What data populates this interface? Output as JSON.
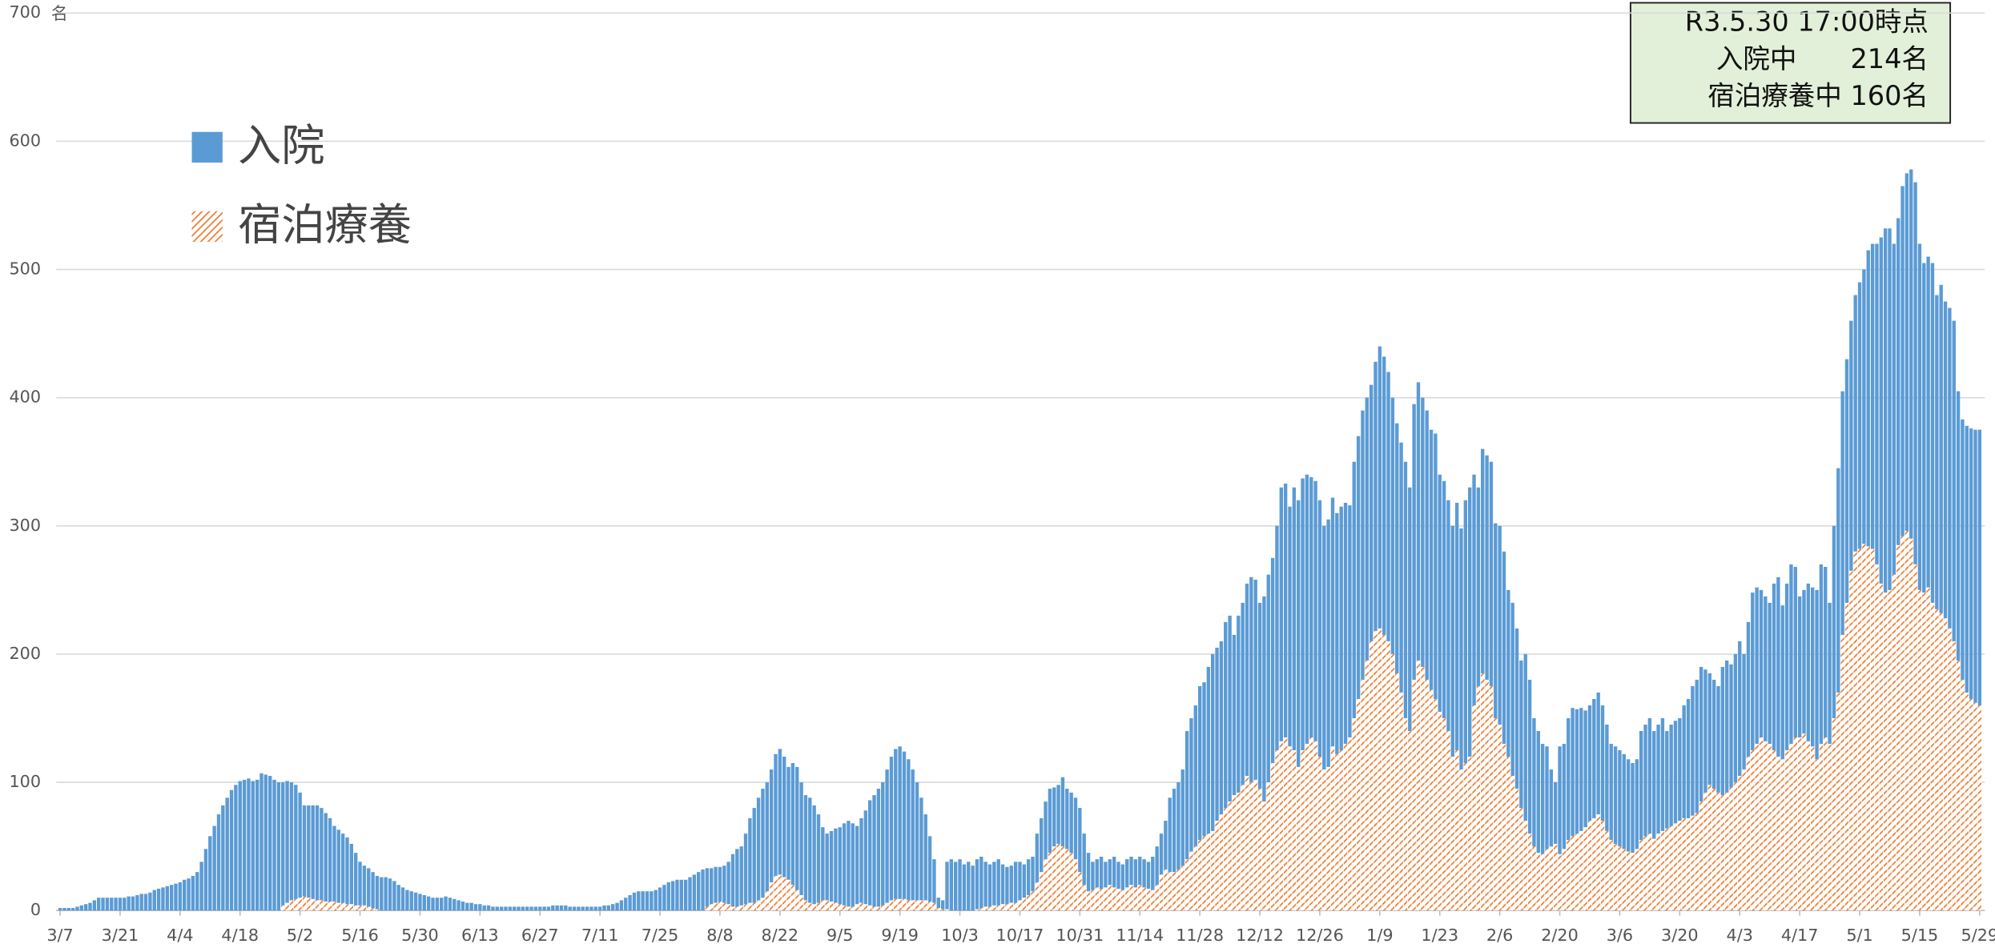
{
  "chart_data": {
    "type": "stacked_bar",
    "y_label": "名",
    "annotation": [
      "R3.5.30 17:00時点",
      "入院中　　214名",
      "宿泊療養中 160名"
    ],
    "ylim": [
      0,
      700
    ],
    "yticks": [
      0,
      100,
      200,
      300,
      400,
      500,
      600,
      700
    ],
    "grid": true,
    "legend": "upper left",
    "categories": [
      "3/7",
      null,
      null,
      null,
      null,
      null,
      null,
      null,
      null,
      null,
      null,
      null,
      null,
      null,
      "3/21",
      null,
      null,
      null,
      null,
      null,
      null,
      null,
      null,
      null,
      null,
      null,
      null,
      null,
      "4/4",
      null,
      null,
      null,
      null,
      null,
      null,
      null,
      null,
      null,
      null,
      null,
      null,
      null,
      "4/18",
      null,
      null,
      null,
      null,
      null,
      null,
      null,
      null,
      null,
      null,
      null,
      null,
      null,
      "5/2",
      null,
      null,
      null,
      null,
      null,
      null,
      null,
      null,
      null,
      null,
      null,
      null,
      null,
      "5/16",
      null,
      null,
      null,
      null,
      null,
      null,
      null,
      null,
      null,
      null,
      null,
      null,
      null,
      "5/30",
      null,
      null,
      null,
      null,
      null,
      null,
      null,
      null,
      null,
      null,
      null,
      null,
      null,
      "6/13",
      null,
      null,
      null,
      null,
      null,
      null,
      null,
      null,
      null,
      null,
      null,
      null,
      null,
      "6/27",
      null,
      null,
      null,
      null,
      null,
      null,
      null,
      null,
      null,
      null,
      null,
      null,
      null,
      "7/11",
      null,
      null,
      null,
      null,
      null,
      null,
      null,
      null,
      null,
      null,
      null,
      null,
      null,
      "7/25",
      null,
      null,
      null,
      null,
      null,
      null,
      null,
      null,
      null,
      null,
      null,
      null,
      null,
      "8/8",
      null,
      null,
      null,
      null,
      null,
      null,
      null,
      null,
      null,
      null,
      null,
      null,
      null,
      "8/22",
      null,
      null,
      null,
      null,
      null,
      null,
      null,
      null,
      null,
      null,
      null,
      null,
      null,
      "9/5",
      null,
      null,
      null,
      null,
      null,
      null,
      null,
      null,
      null,
      null,
      null,
      null,
      null,
      "9/19",
      null,
      null,
      null,
      null,
      null,
      null,
      null,
      null,
      null,
      null,
      null,
      null,
      null,
      "10/3",
      null,
      null,
      null,
      null,
      null,
      null,
      null,
      null,
      null,
      null,
      null,
      null,
      null,
      "10/17",
      null,
      null,
      null,
      null,
      null,
      null,
      null,
      null,
      null,
      null,
      null,
      null,
      null,
      "10/31",
      null,
      null,
      null,
      null,
      null,
      null,
      null,
      null,
      null,
      null,
      null,
      null,
      null,
      "11/14",
      null,
      null,
      null,
      null,
      null,
      null,
      null,
      null,
      null,
      null,
      null,
      null,
      null,
      "11/28",
      null,
      null,
      null,
      null,
      null,
      null,
      null,
      null,
      null,
      null,
      null,
      null,
      null,
      "12/12",
      null,
      null,
      null,
      null,
      null,
      null,
      null,
      null,
      null,
      null,
      null,
      null,
      null,
      "12/26",
      null,
      null,
      null,
      null,
      null,
      null,
      null,
      null,
      null,
      null,
      null,
      null,
      null,
      "1/9",
      null,
      null,
      null,
      null,
      null,
      null,
      null,
      null,
      null,
      null,
      null,
      null,
      null,
      "1/23",
      null,
      null,
      null,
      null,
      null,
      null,
      null,
      null,
      null,
      null,
      null,
      null,
      null,
      "2/6",
      null,
      null,
      null,
      null,
      null,
      null,
      null,
      null,
      null,
      null,
      null,
      null,
      null,
      "2/20",
      null,
      null,
      null,
      null,
      null,
      null,
      null,
      null,
      null,
      null,
      null,
      null,
      null,
      "3/6",
      null,
      null,
      null,
      null,
      null,
      null,
      null,
      null,
      null,
      null,
      null,
      null,
      null,
      "3/20",
      null,
      null,
      null,
      null,
      null,
      null,
      null,
      null,
      null,
      null,
      null,
      null,
      null,
      "4/3",
      null,
      null,
      null,
      null,
      null,
      null,
      null,
      null,
      null,
      null,
      null,
      null,
      null,
      "4/17",
      null,
      null,
      null,
      null,
      null,
      null,
      null,
      null,
      null,
      null,
      null,
      null,
      null,
      "5/1",
      null,
      null,
      null,
      null,
      null,
      null,
      null,
      null,
      null,
      null,
      null,
      null,
      null,
      "5/15",
      null,
      null,
      null,
      null,
      null,
      null,
      null,
      null,
      null,
      null,
      null,
      null,
      null,
      "5/29"
    ],
    "series": [
      {
        "name": "入院",
        "color": "#5b9bd5",
        "values": [
          2,
          2,
          2,
          2,
          3,
          4,
          5,
          6,
          8,
          10,
          10,
          10,
          10,
          10,
          10,
          10,
          11,
          11,
          12,
          13,
          13,
          14,
          16,
          17,
          18,
          19,
          20,
          21,
          22,
          24,
          25,
          27,
          30,
          38,
          48,
          58,
          66,
          75,
          82,
          88,
          94,
          98,
          101,
          102,
          103,
          101,
          102,
          107,
          106,
          105,
          102,
          100,
          96,
          95,
          92,
          89,
          82,
          71,
          72,
          73,
          74,
          72,
          69,
          65,
          59,
          57,
          54,
          52,
          47,
          41,
          34,
          31,
          30,
          28,
          26,
          26,
          26,
          25,
          23,
          20,
          18,
          16,
          15,
          14,
          13,
          12,
          11,
          10,
          10,
          10,
          11,
          10,
          9,
          8,
          7,
          6,
          6,
          5,
          5,
          4,
          4,
          3,
          3,
          3,
          3,
          3,
          3,
          3,
          3,
          3,
          3,
          3,
          3,
          3,
          3,
          4,
          4,
          4,
          4,
          3,
          3,
          3,
          3,
          3,
          3,
          3,
          3,
          4,
          4,
          5,
          6,
          8,
          10,
          12,
          14,
          15,
          15,
          15,
          15,
          16,
          18,
          20,
          22,
          23,
          24,
          24,
          24,
          26,
          28,
          30,
          32,
          30,
          28,
          28,
          27,
          29,
          33,
          41,
          45,
          46,
          55,
          66,
          74,
          80,
          85,
          85,
          88,
          95,
          98,
          94,
          88,
          95,
          96,
          88,
          82,
          82,
          77,
          69,
          57,
          52,
          55,
          58,
          60,
          64,
          67,
          65,
          61,
          66,
          73,
          82,
          87,
          92,
          96,
          104,
          112,
          117,
          119,
          115,
          110,
          102,
          92,
          80,
          67,
          51,
          34,
          8,
          7,
          37,
          40,
          38,
          40,
          36,
          38,
          35,
          39,
          40,
          35,
          33,
          34,
          36,
          31,
          29,
          29,
          32,
          30,
          26,
          28,
          27,
          38,
          42,
          45,
          50,
          46,
          46,
          54,
          47,
          47,
          48,
          50,
          40,
          30,
          22,
          22,
          25,
          20,
          20,
          24,
          21,
          20,
          22,
          22,
          22,
          22,
          22,
          21,
          26,
          30,
          32,
          38,
          58,
          65,
          68,
          75,
          100,
          104,
          110,
          120,
          120,
          130,
          138,
          135,
          135,
          145,
          145,
          125,
          138,
          142,
          150,
          160,
          156,
          145,
          160,
          162,
          160,
          175,
          198,
          198,
          187,
          205,
          208,
          212,
          210,
          203,
          203,
          200,
          190,
          193,
          194,
          188,
          190,
          188,
          181,
          200,
          205,
          210,
          205,
          200,
          210,
          220,
          217,
          210,
          200,
          195,
          195,
          200,
          190,
          215,
          217,
          210,
          210,
          203,
          207,
          185,
          185,
          180,
          180,
          193,
          188,
          205,
          210,
          180,
          155,
          175,
          175,
          175,
          152,
          155,
          150,
          130,
          135,
          125,
          115,
          130,
          120,
          100,
          95,
          86,
          80,
          60,
          48,
          84,
          82,
          95,
          100,
          97,
          96,
          91,
          90,
          93,
          95,
          90,
          83,
          75,
          76,
          75,
          74,
          72,
          70,
          70,
          85,
          87,
          90,
          84,
          85,
          88,
          76,
          79,
          80,
          80,
          88,
          93,
          101,
          104,
          105,
          96,
          87,
          85,
          83,
          100,
          103,
          96,
          100,
          105,
          90,
          105,
          123,
          122,
          115,
          113,
          110,
          130,
          140,
          120,
          130,
          140,
          133,
          110,
          112,
          123,
          124,
          132,
          140,
          133,
          110,
          150,
          175,
          190,
          190,
          195,
          200,
          208,
          214,
          231,
          238,
          250,
          270,
          284,
          282,
          258,
          255,
          273,
          279,
          288,
          298,
          270,
          257,
          258,
          265,
          245,
          256,
          247,
          250,
          250,
          210,
          203,
          208,
          211,
          213,
          215
        ]
      },
      {
        "name": "宿泊療養",
        "color": "#ed7d31",
        "pattern": "hatch",
        "values": [
          0,
          0,
          0,
          0,
          0,
          0,
          0,
          0,
          0,
          0,
          0,
          0,
          0,
          0,
          0,
          0,
          0,
          0,
          0,
          0,
          0,
          0,
          0,
          0,
          0,
          0,
          0,
          0,
          0,
          0,
          0,
          0,
          0,
          0,
          0,
          0,
          0,
          0,
          0,
          0,
          0,
          0,
          0,
          0,
          0,
          0,
          0,
          0,
          0,
          0,
          0,
          0,
          4,
          6,
          8,
          9,
          10,
          11,
          10,
          9,
          8,
          8,
          7,
          7,
          7,
          6,
          6,
          5,
          5,
          4,
          4,
          4,
          3,
          2,
          1,
          0,
          0,
          0,
          0,
          0,
          0,
          0,
          0,
          0,
          0,
          0,
          0,
          0,
          0,
          0,
          0,
          0,
          0,
          0,
          0,
          0,
          0,
          0,
          0,
          0,
          0,
          0,
          0,
          0,
          0,
          0,
          0,
          0,
          0,
          0,
          0,
          0,
          0,
          0,
          0,
          0,
          0,
          0,
          0,
          0,
          0,
          0,
          0,
          0,
          0,
          0,
          0,
          0,
          0,
          0,
          0,
          0,
          0,
          0,
          0,
          0,
          0,
          0,
          0,
          0,
          0,
          0,
          0,
          0,
          0,
          0,
          0,
          0,
          0,
          0,
          0,
          3,
          5,
          6,
          7,
          6,
          5,
          3,
          3,
          4,
          5,
          6,
          6,
          8,
          10,
          15,
          22,
          27,
          28,
          26,
          24,
          20,
          16,
          12,
          8,
          6,
          5,
          6,
          8,
          8,
          7,
          6,
          5,
          4,
          3,
          3,
          5,
          6,
          5,
          4,
          3,
          3,
          4,
          6,
          8,
          9,
          9,
          9,
          8,
          8,
          8,
          8,
          8,
          7,
          6,
          2,
          1,
          1,
          0,
          0,
          0,
          0,
          0,
          0,
          1,
          2,
          3,
          3,
          4,
          4,
          5,
          5,
          6,
          6,
          8,
          10,
          12,
          15,
          22,
          30,
          40,
          45,
          50,
          52,
          50,
          48,
          45,
          40,
          30,
          20,
          15,
          16,
          18,
          17,
          18,
          20,
          18,
          17,
          16,
          18,
          20,
          18,
          20,
          18,
          17,
          16,
          20,
          28,
          32,
          30,
          30,
          32,
          35,
          40,
          46,
          50,
          55,
          58,
          60,
          62,
          70,
          75,
          80,
          85,
          90,
          92,
          98,
          105,
          100,
          102,
          95,
          85,
          100,
          115,
          125,
          132,
          135,
          128,
          125,
          112,
          125,
          130,
          135,
          132,
          120,
          110,
          112,
          128,
          122,
          125,
          130,
          135,
          150,
          165,
          180,
          195,
          210,
          218,
          220,
          215,
          210,
          200,
          185,
          170,
          150,
          140,
          180,
          195,
          190,
          180,
          172,
          165,
          155,
          150,
          140,
          120,
          125,
          110,
          115,
          120,
          160,
          175,
          185,
          180,
          175,
          150,
          145,
          130,
          120,
          105,
          95,
          80,
          70,
          60,
          50,
          45,
          44,
          48,
          50,
          52,
          44,
          48,
          55,
          58,
          60,
          62,
          65,
          70,
          72,
          75,
          70,
          62,
          55,
          52,
          50,
          48,
          46,
          45,
          48,
          55,
          58,
          60,
          56,
          60,
          62,
          64,
          66,
          68,
          70,
          72,
          72,
          74,
          76,
          85,
          92,
          98,
          95,
          92,
          90,
          92,
          96,
          100,
          105,
          110,
          120,
          125,
          130,
          135,
          132,
          130,
          125,
          120,
          118,
          125,
          130,
          135,
          135,
          138,
          132,
          128,
          118,
          130,
          135,
          130,
          150,
          170,
          215,
          240,
          265,
          280,
          282,
          286,
          284,
          282,
          270,
          255,
          248,
          250,
          262,
          285,
          292,
          296,
          290,
          270,
          250,
          248,
          252,
          240,
          235,
          232,
          228,
          220,
          210,
          195,
          180,
          170,
          165,
          162,
          160
        ]
      }
    ]
  }
}
